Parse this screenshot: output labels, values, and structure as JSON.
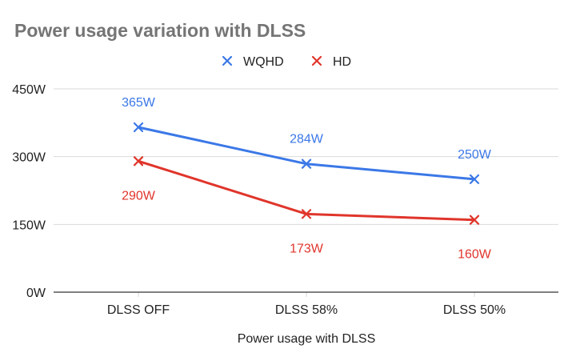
{
  "chart_data": {
    "type": "line",
    "title": "Power usage variation with DLSS",
    "xlabel": "Power usage with DLSS",
    "ylabel": "",
    "categories": [
      "DLSS OFF",
      "DLSS 58%",
      "DLSS 50%"
    ],
    "ylim": [
      0,
      450
    ],
    "yticks": [
      0,
      150,
      300,
      450
    ],
    "ytick_labels": [
      "0W",
      "150W",
      "300W",
      "450W"
    ],
    "grid": true,
    "legend_position": "top",
    "marker": "x",
    "series": [
      {
        "name": "WQHD",
        "color": "#3b78e7",
        "values": [
          365,
          284,
          250
        ],
        "labels": [
          "365W",
          "284W",
          "250W"
        ],
        "label_position": "above"
      },
      {
        "name": "HD",
        "color": "#e0352b",
        "values": [
          290,
          173,
          160
        ],
        "labels": [
          "290W",
          "173W",
          "160W"
        ],
        "label_position": "below"
      }
    ],
    "colors": {
      "title": "#757575",
      "axis_text": "#222222",
      "grid": "#d9d9d9",
      "axis_line": "#333333"
    }
  }
}
